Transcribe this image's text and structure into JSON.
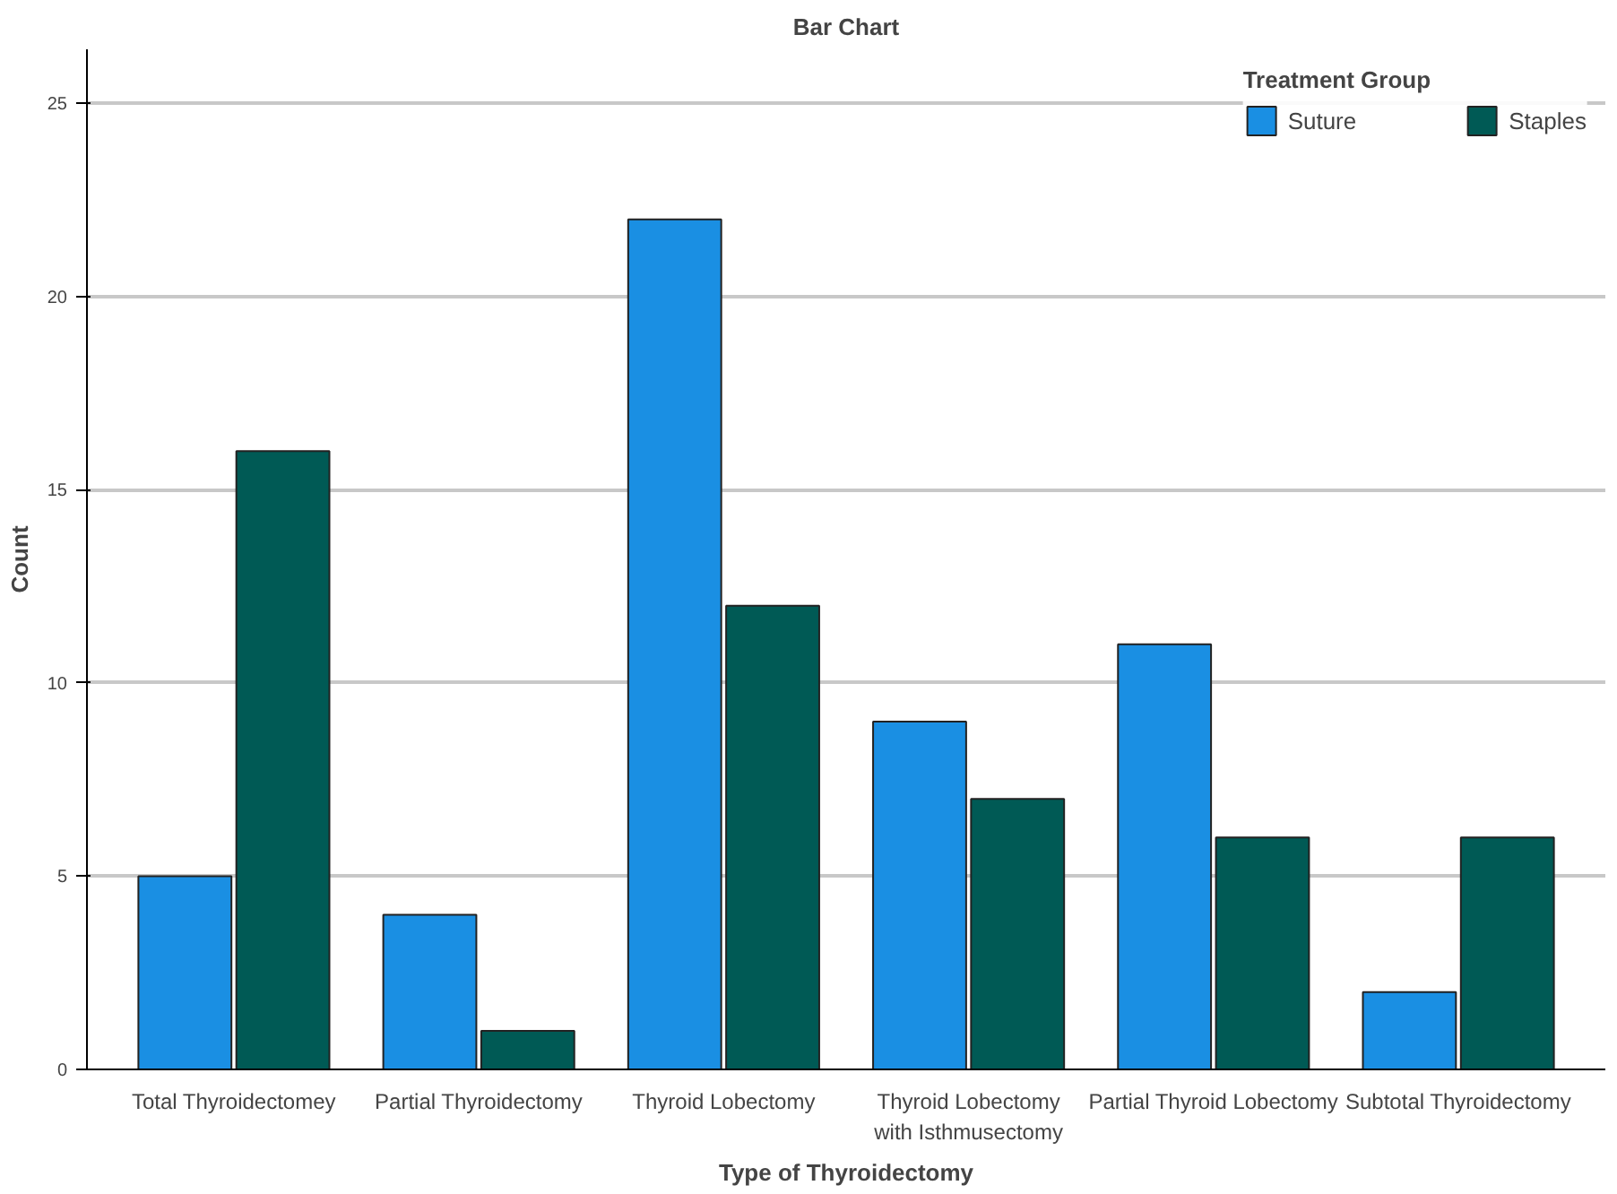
{
  "chart_data": {
    "type": "bar",
    "title": "Bar Chart",
    "xlabel": "Type of Thyroidectomy",
    "ylabel": "Count",
    "legend_title": "Treatment Group",
    "categories": [
      "Total Thyroidectomey",
      "Partial Thyroidectomy",
      "Thyroid Lobectomy",
      "Thyroid Lobectomy with Isthmusectomy",
      "Partial Thyroid Lobectomy",
      "Subtotal Thyroidectomy"
    ],
    "series": [
      {
        "name": "Suture",
        "color": "#1a8fe3",
        "values": [
          5,
          4,
          22,
          9,
          11,
          2
        ]
      },
      {
        "name": "Staples",
        "color": "#005a55",
        "values": [
          16,
          1,
          12,
          7,
          6,
          6
        ]
      }
    ],
    "ylim": [
      0,
      26.4
    ],
    "yticks": [
      0,
      5,
      10,
      15,
      20,
      25
    ],
    "grid": "y",
    "legend": "top right"
  }
}
